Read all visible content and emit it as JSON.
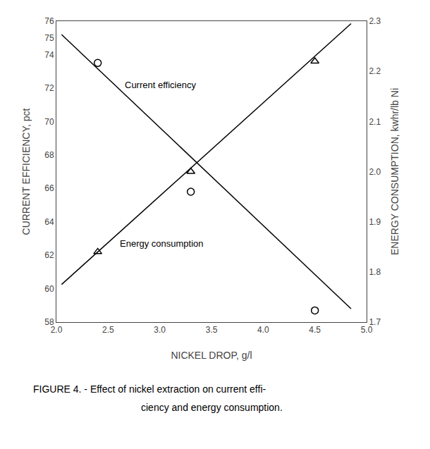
{
  "chart_data": {
    "type": "scatter",
    "xlabel": "NICKEL DROP, g/l",
    "ylabel": "CURRENT EFFICIENCY, pct",
    "y2label": "ENERGY CONSUMPTION, kwhr/lb Ni",
    "xlim": [
      2.0,
      5.0
    ],
    "ylim": [
      58,
      76
    ],
    "y2lim": [
      1.7,
      2.3
    ],
    "xticks": [
      {
        "value": 2.0,
        "label": "2.0"
      },
      2.5,
      {
        "value": 3.0,
        "label": "3.0"
      },
      3.5,
      {
        "value": 4.0,
        "label": "4.0"
      },
      4.5,
      {
        "value": 5.0,
        "label": "5.0"
      }
    ],
    "yticks": [
      58,
      60,
      62,
      64,
      66,
      68,
      70,
      72,
      74,
      75,
      76
    ],
    "y2ticks": [
      1.7,
      1.8,
      1.9,
      {
        "value": 2.0,
        "label": "2.0"
      },
      2.1,
      2.2,
      2.3
    ],
    "grid": false,
    "series": [
      {
        "type": "line",
        "x": [
          2.05,
          4.85
        ],
        "values": [
          75.2,
          58.8
        ],
        "color": "#000000",
        "line_style": "solid"
      },
      {
        "type": "scatter",
        "x": [
          2.4,
          3.3,
          4.5
        ],
        "values": [
          73.5,
          65.8,
          58.7
        ],
        "color": "#000000",
        "marker": "circle-open"
      },
      {
        "type": "line",
        "axis": "y2",
        "x": [
          2.05,
          4.85
        ],
        "values": [
          1.775,
          2.295
        ],
        "color": "#000000",
        "line_style": "solid"
      },
      {
        "type": "scatter",
        "axis": "y2",
        "x": [
          2.4,
          3.3,
          4.5
        ],
        "values": [
          1.84,
          2.0,
          2.22
        ],
        "color": "#000000",
        "marker": "triangle-up-open"
      }
    ],
    "annotations": [
      {
        "text": "Current efficiency",
        "x": 2.65,
        "y": 71.8
      },
      {
        "text": "Energy consumption",
        "x": 2.6,
        "y": 62.3
      }
    ],
    "caption": [
      "FIGURE 4. - Effect of nickel extraction on current effi-",
      "ciency and energy consumption."
    ]
  }
}
